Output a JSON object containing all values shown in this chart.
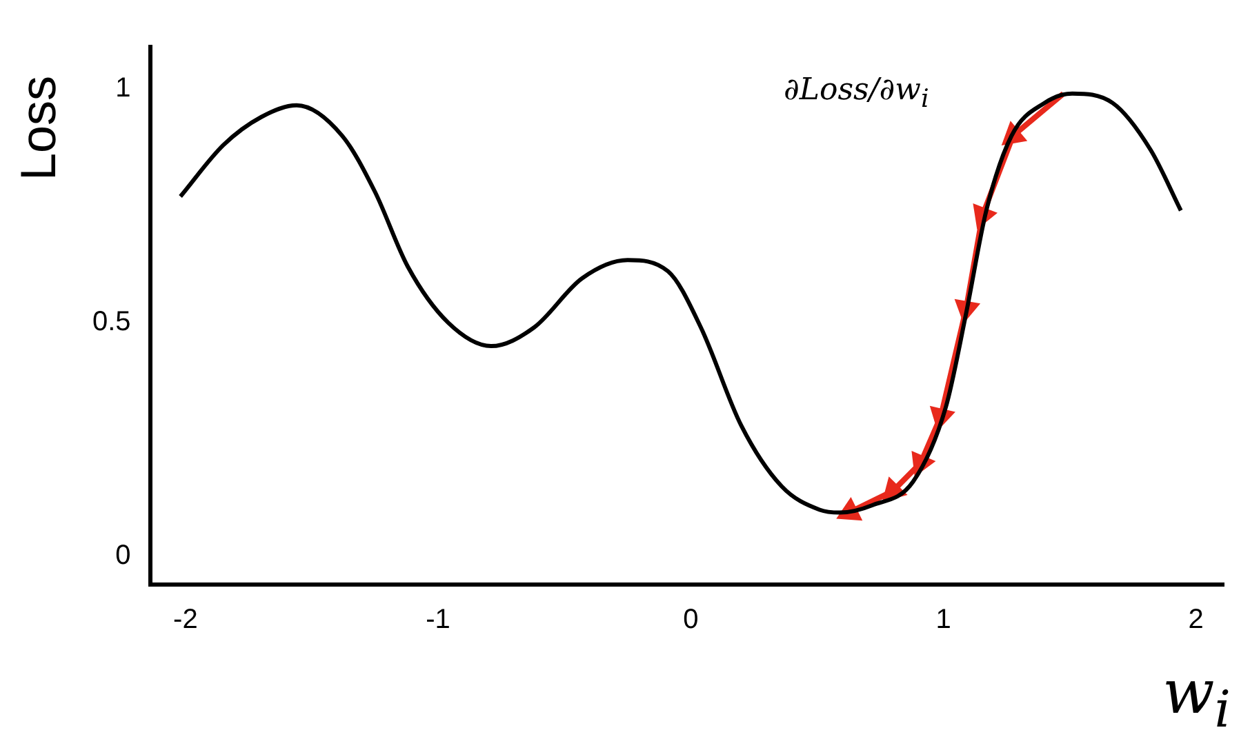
{
  "chart_data": {
    "type": "line",
    "xlabel": "w$_{i}$",
    "ylabel": "Loss",
    "annotations": [
      "∂Loss/∂w$_{i}$"
    ],
    "xlim": [
      -2.14,
      2.11
    ],
    "ylim": [
      -0.06,
      1.09
    ],
    "xticks": [
      -2,
      -1,
      0,
      1,
      2
    ],
    "yticks": [
      0,
      0.5,
      1
    ],
    "grid": false,
    "legend": false,
    "series": [
      {
        "color": "#000000",
        "x": [
          -2.02,
          -1.85,
          -1.7,
          -1.56,
          -1.38,
          -1.25,
          -1.12,
          -0.96,
          -0.79,
          -0.62,
          -0.43,
          -0.25,
          -0.09,
          0.04,
          0.2,
          0.36,
          0.51,
          0.59,
          0.72,
          0.88,
          1.01,
          1.09,
          1.17,
          1.27,
          1.4,
          1.51,
          1.67,
          1.82,
          1.94
        ],
        "values": [
          0.77,
          0.88,
          0.94,
          0.965,
          0.9,
          0.78,
          0.62,
          0.5,
          0.45,
          0.49,
          0.595,
          0.634,
          0.61,
          0.49,
          0.28,
          0.15,
          0.1,
          0.094,
          0.11,
          0.16,
          0.32,
          0.52,
          0.74,
          0.9,
          0.97,
          0.99,
          0.97,
          0.87,
          0.74
        ]
      },
      {
        "color": "#e8291c",
        "marker": "triangle",
        "x": [
          1.475,
          1.276,
          1.155,
          1.09,
          0.99,
          0.91,
          0.8,
          0.63
        ],
        "values": [
          0.99,
          0.9,
          0.73,
          0.53,
          0.3,
          0.2,
          0.14,
          0.095
        ]
      }
    ]
  }
}
